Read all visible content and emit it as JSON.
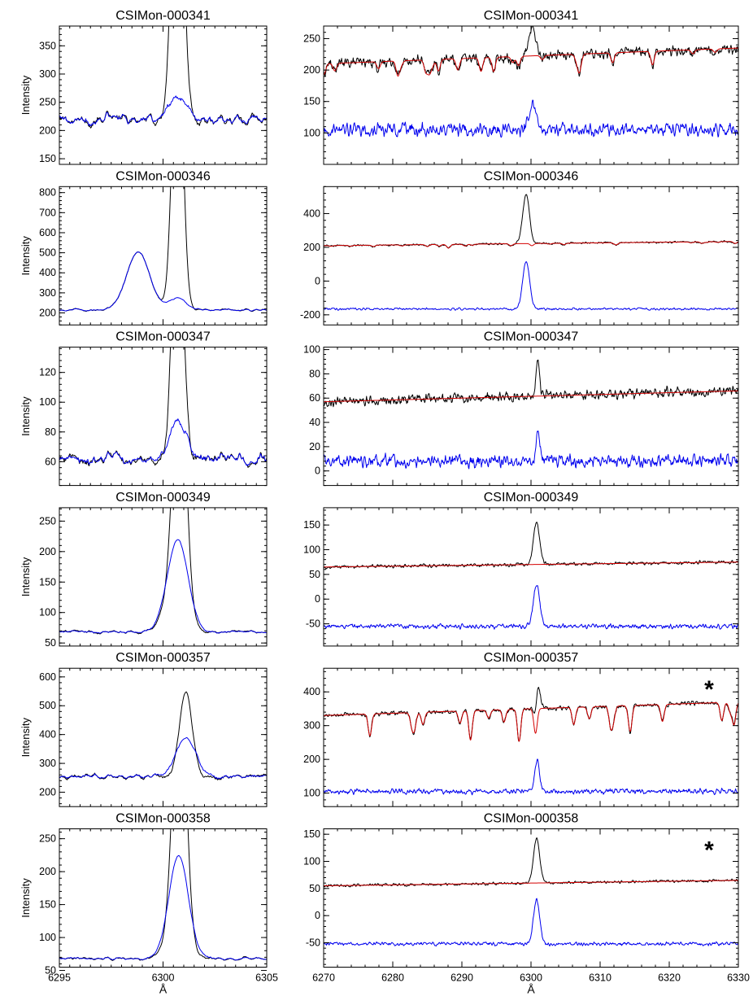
{
  "figure": {
    "x_label": "Å",
    "y_label": "Intensity",
    "left_x_ticks": [
      "6295",
      "6300",
      "6305"
    ],
    "right_x_ticks": [
      "6270",
      "6280",
      "6290",
      "6300",
      "6310",
      "6320",
      "6330"
    ],
    "colors": {
      "observed": "#000000",
      "model": "#d40000",
      "residual": "#0000ee"
    }
  },
  "chart_data": [
    {
      "type": "line",
      "title": "CSIMon-000341",
      "panel": "left",
      "xlim": [
        6295,
        6305
      ],
      "ylim": [
        140,
        385
      ],
      "yticks": [
        150,
        200,
        250,
        300,
        350
      ],
      "series": [
        {
          "role": "observed"
        },
        {
          "role": "residual"
        }
      ],
      "profile": {
        "base": 220,
        "noise": 12,
        "peak_x": 6300.7,
        "peak_width": 0.25,
        "peak_height": 700,
        "blue_peak_height": 40
      }
    },
    {
      "type": "line",
      "title": "CSIMon-000341",
      "panel": "right",
      "xlim": [
        6270,
        6330
      ],
      "ylim": [
        50,
        270
      ],
      "yticks": [
        100,
        150,
        200,
        250
      ],
      "series": [
        {
          "role": "observed"
        },
        {
          "role": "model"
        },
        {
          "role": "residual"
        }
      ],
      "profile": {
        "base": 210,
        "slope_end": 235,
        "offset_level": 105,
        "noise": 8,
        "peak_x": 6300.2,
        "peak_width": 0.5,
        "peak_height": 45,
        "blue_peak_height": 40,
        "absorption": 18
      }
    },
    {
      "type": "line",
      "title": "CSIMon-000346",
      "panel": "left",
      "xlim": [
        6295,
        6305
      ],
      "ylim": [
        140,
        830
      ],
      "yticks": [
        200,
        300,
        400,
        500,
        600,
        700,
        800
      ],
      "series": [
        {
          "role": "observed"
        },
        {
          "role": "residual"
        }
      ],
      "profile": {
        "base": 215,
        "noise": 6,
        "peak_x": 6300.7,
        "peak_width": 0.25,
        "peak_height": 1500,
        "broad_x": 6298.8,
        "broad_width": 0.55,
        "broad_height": 290,
        "blue_peak_height": 60
      }
    },
    {
      "type": "line",
      "title": "CSIMon-000346",
      "panel": "right",
      "xlim": [
        6270,
        6330
      ],
      "ylim": [
        -260,
        560
      ],
      "yticks": [
        -200,
        0,
        200,
        400
      ],
      "series": [
        {
          "role": "observed"
        },
        {
          "role": "model"
        },
        {
          "role": "residual"
        }
      ],
      "profile": {
        "base": 210,
        "slope_end": 235,
        "offset_level": -165,
        "noise": 5,
        "peak_x": 6299.3,
        "peak_width": 0.5,
        "peak_height": 290,
        "blue_peak_height": 280,
        "absorption": 10
      }
    },
    {
      "type": "line",
      "title": "CSIMon-000347",
      "panel": "left",
      "xlim": [
        6295,
        6305
      ],
      "ylim": [
        44,
        137
      ],
      "yticks": [
        60,
        80,
        100,
        120
      ],
      "series": [
        {
          "role": "observed"
        },
        {
          "role": "residual"
        }
      ],
      "profile": {
        "base": 62,
        "noise": 5,
        "peak_x": 6300.7,
        "peak_width": 0.25,
        "peak_height": 200,
        "blue_peak_height": 25
      }
    },
    {
      "type": "line",
      "title": "CSIMon-000347",
      "panel": "right",
      "xlim": [
        6270,
        6330
      ],
      "ylim": [
        -12,
        102
      ],
      "yticks": [
        0,
        20,
        40,
        60,
        80,
        100
      ],
      "series": [
        {
          "role": "observed"
        },
        {
          "role": "model"
        },
        {
          "role": "residual"
        }
      ],
      "profile": {
        "base": 57,
        "slope_end": 66,
        "offset_level": 8,
        "noise": 4,
        "peak_x": 6301,
        "peak_width": 0.25,
        "peak_height": 28,
        "blue_peak_height": 28,
        "absorption": 0
      }
    },
    {
      "type": "line",
      "title": "CSIMon-000349",
      "panel": "left",
      "xlim": [
        6295,
        6305
      ],
      "ylim": [
        45,
        272
      ],
      "yticks": [
        50,
        100,
        150,
        200,
        250
      ],
      "series": [
        {
          "role": "observed"
        },
        {
          "role": "residual"
        }
      ],
      "profile": {
        "base": 68,
        "noise": 3,
        "peak_x": 6300.8,
        "peak_width": 0.3,
        "peak_height": 400,
        "broad_x": 6300.6,
        "broad_width": 0.5,
        "broad_height": 80,
        "blue_peak_height": 75
      }
    },
    {
      "type": "line",
      "title": "CSIMon-000349",
      "panel": "right",
      "xlim": [
        6270,
        6330
      ],
      "ylim": [
        -95,
        185
      ],
      "yticks": [
        -50,
        0,
        50,
        100,
        150
      ],
      "series": [
        {
          "role": "observed"
        },
        {
          "role": "model"
        },
        {
          "role": "residual"
        }
      ],
      "profile": {
        "base": 65,
        "slope_end": 75,
        "offset_level": -55,
        "noise": 3.5,
        "peak_x": 6300.8,
        "peak_width": 0.45,
        "peak_height": 85,
        "blue_peak_height": 85,
        "absorption": 0
      }
    },
    {
      "type": "line",
      "title": "CSIMon-000357",
      "panel": "left",
      "xlim": [
        6295,
        6305
      ],
      "ylim": [
        150,
        630
      ],
      "yticks": [
        200,
        300,
        400,
        500,
        600
      ],
      "series": [
        {
          "role": "observed"
        },
        {
          "role": "residual"
        }
      ],
      "profile": {
        "base": 255,
        "noise": 10,
        "peak_x": 6301.1,
        "peak_width": 0.3,
        "peak_height": 290,
        "blue_peak_height": 130
      }
    },
    {
      "type": "line",
      "title": "CSIMon-000357",
      "panel": "right",
      "xlim": [
        6270,
        6330
      ],
      "ylim": [
        60,
        470
      ],
      "yticks": [
        100,
        200,
        300,
        400
      ],
      "series": [
        {
          "role": "observed"
        },
        {
          "role": "model"
        },
        {
          "role": "residual"
        }
      ],
      "profile": {
        "base": 330,
        "slope_end": 370,
        "offset_level": 105,
        "noise": 6,
        "peak_x": 6300.9,
        "peak_width": 0.35,
        "peak_height": 90,
        "blue_peak_height": 90,
        "absorption": 60
      }
    },
    {
      "type": "line",
      "title": "CSIMon-000358",
      "panel": "left",
      "xlim": [
        6295,
        6305
      ],
      "ylim": [
        55,
        265
      ],
      "yticks": [
        50,
        100,
        150,
        200,
        250
      ],
      "series": [
        {
          "role": "observed"
        },
        {
          "role": "residual"
        }
      ],
      "profile": {
        "base": 68,
        "noise": 2.5,
        "peak_x": 6300.8,
        "peak_width": 0.3,
        "peak_height": 400,
        "broad_x": 6300.7,
        "broad_width": 0.45,
        "broad_height": 70,
        "blue_peak_height": 88
      }
    },
    {
      "type": "line",
      "title": "CSIMon-000358",
      "panel": "right",
      "xlim": [
        6270,
        6330
      ],
      "ylim": [
        -95,
        160
      ],
      "yticks": [
        -50,
        0,
        50,
        100,
        150
      ],
      "series": [
        {
          "role": "observed"
        },
        {
          "role": "model"
        },
        {
          "role": "residual"
        }
      ],
      "profile": {
        "base": 55,
        "slope_end": 65,
        "offset_level": -52,
        "noise": 2.5,
        "peak_x": 6300.8,
        "peak_width": 0.45,
        "peak_height": 82,
        "blue_peak_height": 82,
        "absorption": 0
      }
    }
  ],
  "annotations": [
    {
      "panel_index": 9,
      "text": "*"
    },
    {
      "panel_index": 11,
      "text": "*"
    }
  ]
}
